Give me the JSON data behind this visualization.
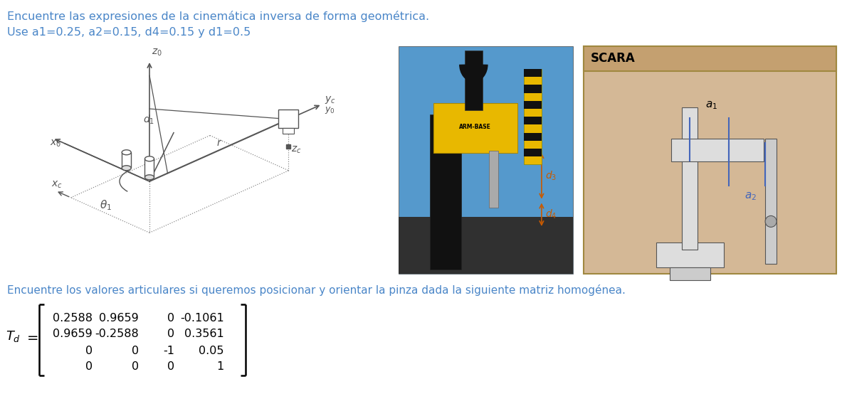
{
  "title1": "Encuentre las expresiones de la cinemática inversa de forma geométrica.",
  "title2": "Use a1=0.25, a2=0.15, d4=0.15 y d1=0.5",
  "title3": "Encuentre los valores articulares si queremos posicionar y orientar la pinza dada la siguiente matriz homogénea.",
  "matrix": [
    [
      "0.2588",
      "0.9659",
      "0",
      "-0.1061"
    ],
    [
      "0.9659",
      "-0.2588",
      "0",
      "0.3561"
    ],
    [
      "0",
      "0",
      "-1",
      "0.05"
    ],
    [
      "0",
      "0",
      "0",
      "1"
    ]
  ],
  "text_color": "#4a86c8",
  "diagram_color": "#555555",
  "scara_title": "SCARA",
  "scara_bg": "#d4b896",
  "orange_color": "#c85a00",
  "blue_color": "#4466bb",
  "fig_width": 11.83,
  "fig_height": 5.85,
  "dpi": 100
}
